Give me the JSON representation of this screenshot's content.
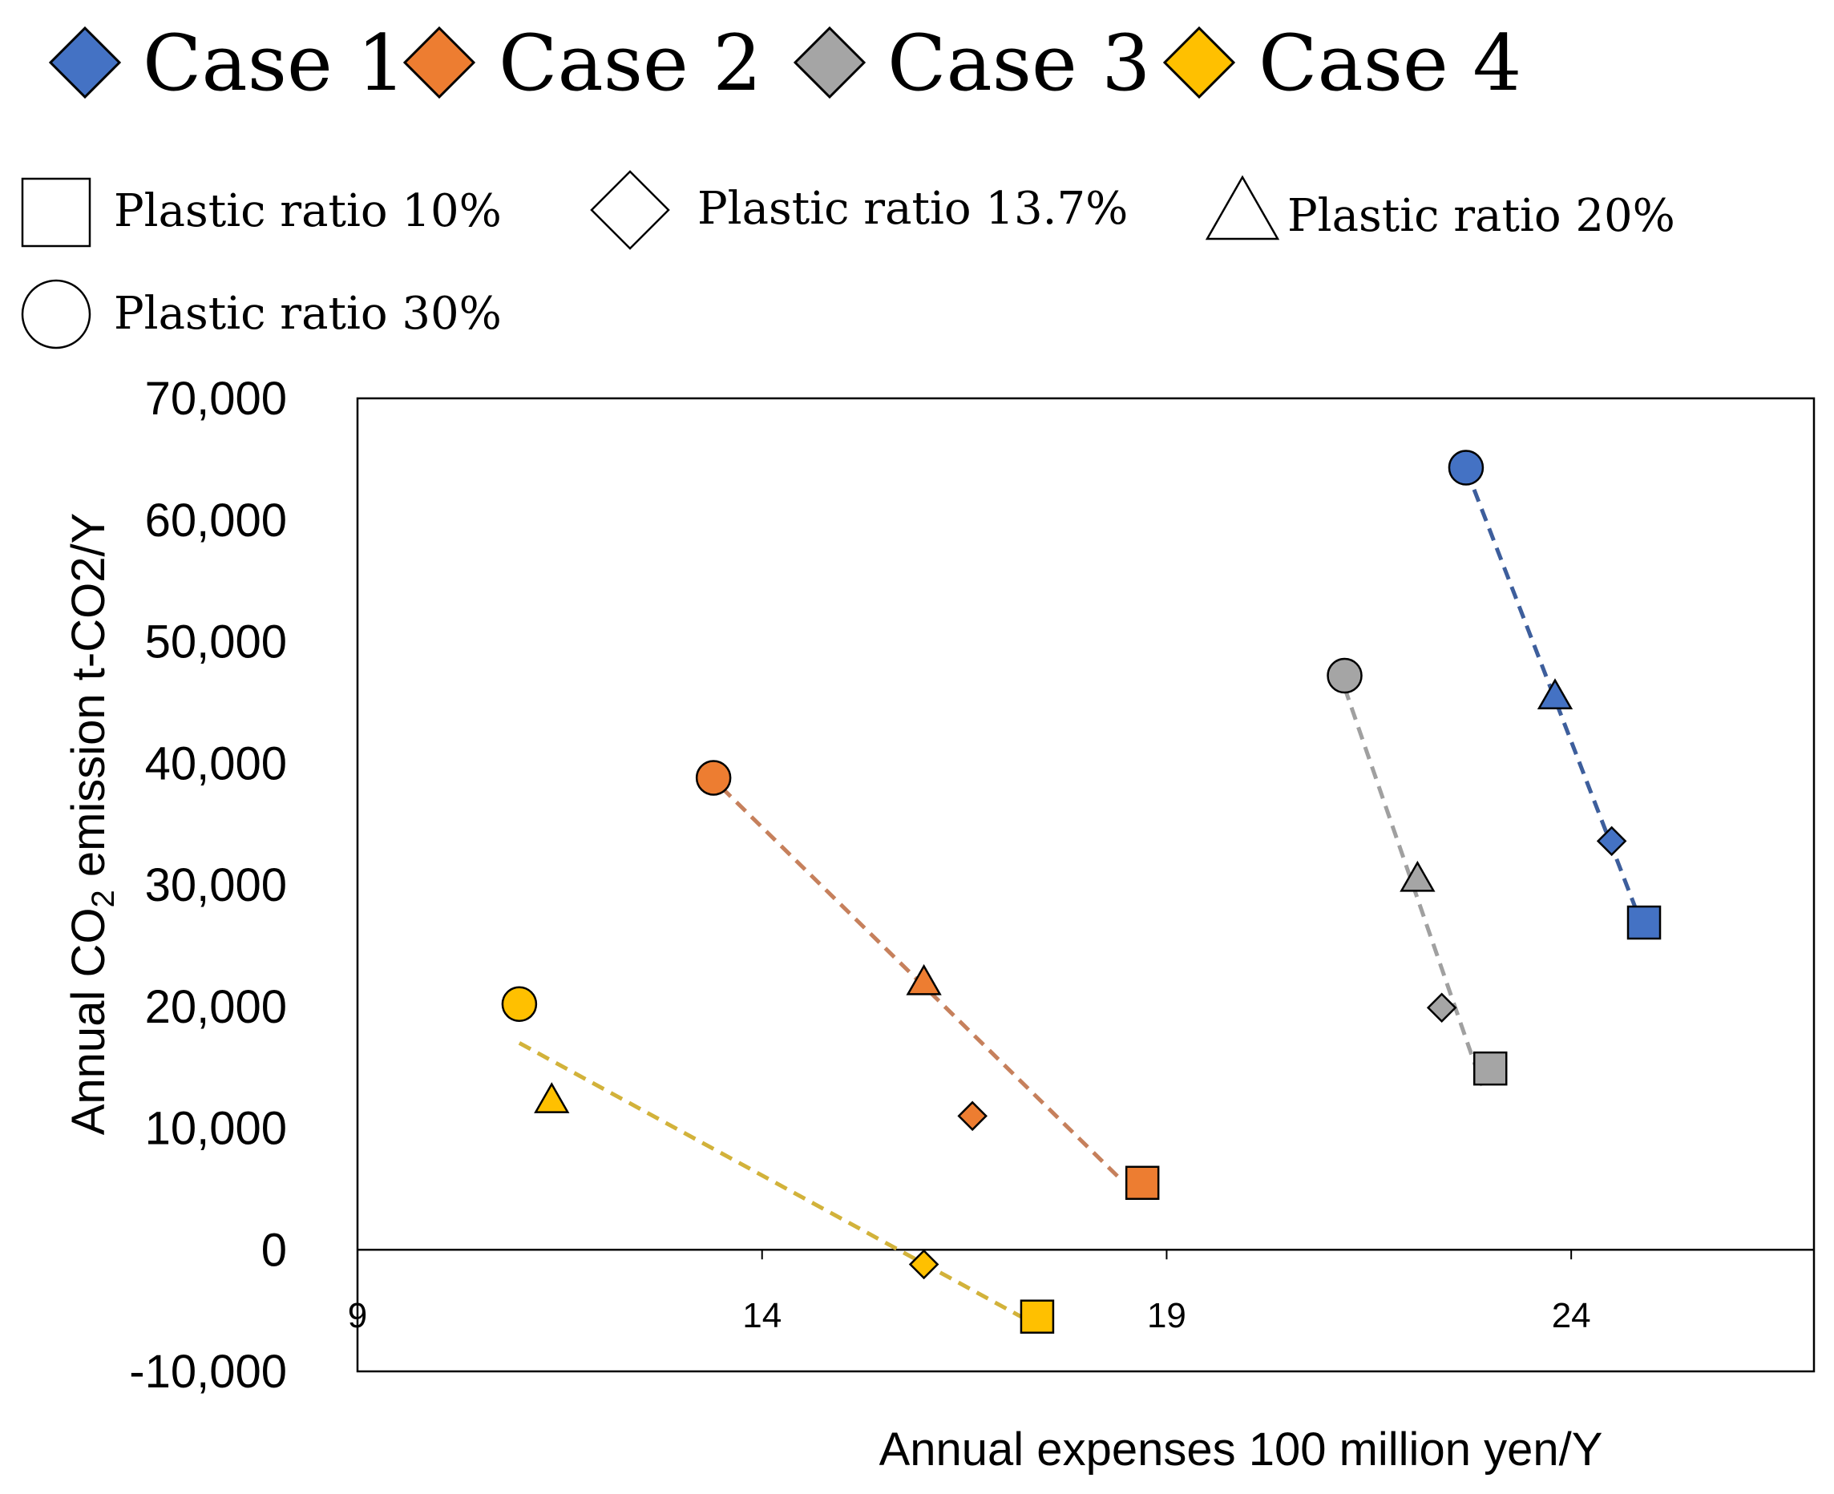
{
  "chart_data": {
    "type": "scatter",
    "title": "",
    "xlabel": "Annual expenses 100 million yen/Y",
    "ylabel": {
      "prefix": "Annual CO",
      "subscript": "2",
      "suffix": " emission t-CO2/Y"
    },
    "xlim": [
      9,
      27
    ],
    "ylim": [
      -10000,
      70000
    ],
    "x_ticks": [
      {
        "value": 9,
        "label": "9"
      },
      {
        "value": 14,
        "label": "14"
      },
      {
        "value": 19,
        "label": "19"
      },
      {
        "value": 24,
        "label": "24"
      }
    ],
    "y_ticks": [
      {
        "value": 70000,
        "label": "70,000"
      },
      {
        "value": 60000,
        "label": "60,000"
      },
      {
        "value": 50000,
        "label": "50,000"
      },
      {
        "value": 40000,
        "label": "40,000"
      },
      {
        "value": 30000,
        "label": "30,000"
      },
      {
        "value": 20000,
        "label": "20,000"
      },
      {
        "value": 10000,
        "label": "10,000"
      },
      {
        "value": 0,
        "label": "0"
      },
      {
        "value": -10000,
        "label": "-10,000"
      }
    ],
    "legend_cases": [
      {
        "label": "Case 1",
        "color": "#4472c4"
      },
      {
        "label": "Case 2",
        "color": "#ed7d31"
      },
      {
        "label": "Case 3",
        "color": "#a5a5a5"
      },
      {
        "label": "Case 4",
        "color": "#ffc000"
      }
    ],
    "legend_ratios": [
      {
        "label": "Plastic ratio 10%",
        "shape": "square"
      },
      {
        "label": "Plastic ratio 13.7%",
        "shape": "diamond"
      },
      {
        "label": "Plastic ratio 20%",
        "shape": "triangle"
      },
      {
        "label": "Plastic ratio 30%",
        "shape": "circle"
      }
    ],
    "series": [
      {
        "name": "Case 1",
        "color": "#4472c4",
        "trend_color": "#3d5e9c",
        "points": [
          {
            "ratio": "30%",
            "shape": "circle",
            "x": 22.7,
            "y": 64300
          },
          {
            "ratio": "20%",
            "shape": "triangle",
            "x": 23.8,
            "y": 45500
          },
          {
            "ratio": "13.7%",
            "shape": "diamond",
            "x": 24.5,
            "y": 33600
          },
          {
            "ratio": "10%",
            "shape": "square",
            "x": 24.9,
            "y": 26900
          }
        ],
        "trendline": [
          [
            22.8,
            62500
          ],
          [
            24.8,
            28000
          ]
        ]
      },
      {
        "name": "Case 2",
        "color": "#ed7d31",
        "trend_color": "#c6805c",
        "points": [
          {
            "ratio": "30%",
            "shape": "circle",
            "x": 13.4,
            "y": 38800
          },
          {
            "ratio": "20%",
            "shape": "triangle",
            "x": 16.0,
            "y": 22000
          },
          {
            "ratio": "13.7%",
            "shape": "diamond",
            "x": 16.6,
            "y": 11000
          },
          {
            "ratio": "10%",
            "shape": "square",
            "x": 18.7,
            "y": 5500
          }
        ],
        "trendline": [
          [
            13.5,
            38000
          ],
          [
            18.4,
            6000
          ]
        ]
      },
      {
        "name": "Case 3",
        "color": "#a5a5a5",
        "trend_color": "#a0a0a0",
        "points": [
          {
            "ratio": "30%",
            "shape": "circle",
            "x": 21.2,
            "y": 47200
          },
          {
            "ratio": "20%",
            "shape": "triangle",
            "x": 22.1,
            "y": 30500
          },
          {
            "ratio": "13.7%",
            "shape": "diamond",
            "x": 22.4,
            "y": 19900
          },
          {
            "ratio": "10%",
            "shape": "square",
            "x": 23.0,
            "y": 14900
          }
        ],
        "trendline": [
          [
            21.2,
            46200
          ],
          [
            22.9,
            13500
          ]
        ]
      },
      {
        "name": "Case 4",
        "color": "#ffc000",
        "trend_color": "#d2b23a",
        "points": [
          {
            "ratio": "30%",
            "shape": "circle",
            "x": 11.0,
            "y": 20200
          },
          {
            "ratio": "20%",
            "shape": "triangle",
            "x": 11.4,
            "y": 12300
          },
          {
            "ratio": "13.7%",
            "shape": "diamond",
            "x": 16.0,
            "y": -1200
          },
          {
            "ratio": "10%",
            "shape": "square",
            "x": 17.4,
            "y": -5500
          }
        ],
        "trendline": [
          [
            11.0,
            17000
          ],
          [
            17.2,
            -5500
          ]
        ]
      }
    ]
  }
}
